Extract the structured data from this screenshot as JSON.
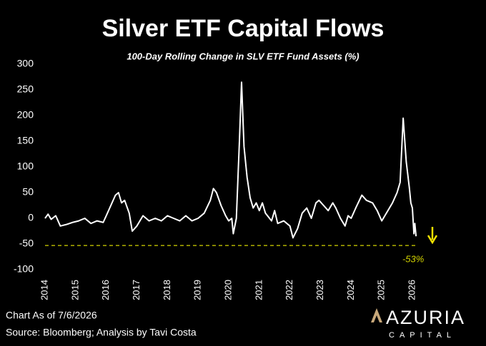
{
  "chart_data": {
    "type": "line",
    "title": "Silver ETF Capital Flows",
    "subtitle": "100-Day Rolling Change in SLV ETF Fund Assets (%)",
    "x": [
      2014.0,
      2014.1,
      2014.2,
      2014.35,
      2014.5,
      2014.7,
      2014.9,
      2015.1,
      2015.3,
      2015.5,
      2015.7,
      2015.9,
      2016.0,
      2016.15,
      2016.3,
      2016.4,
      2016.5,
      2016.6,
      2016.75,
      2016.85,
      2017.0,
      2017.2,
      2017.4,
      2017.6,
      2017.8,
      2018.0,
      2018.2,
      2018.4,
      2018.6,
      2018.8,
      2019.0,
      2019.2,
      2019.4,
      2019.5,
      2019.6,
      2019.75,
      2019.9,
      2020.0,
      2020.1,
      2020.15,
      2020.25,
      2020.35,
      2020.42,
      2020.5,
      2020.6,
      2020.7,
      2020.8,
      2020.9,
      2021.0,
      2021.1,
      2021.2,
      2021.4,
      2021.5,
      2021.6,
      2021.8,
      2022.0,
      2022.1,
      2022.25,
      2022.4,
      2022.55,
      2022.7,
      2022.85,
      2022.95,
      2023.1,
      2023.25,
      2023.4,
      2023.5,
      2023.65,
      2023.8,
      2023.9,
      2024.0,
      2024.15,
      2024.35,
      2024.5,
      2024.7,
      2024.85,
      2025.0,
      2025.2,
      2025.35,
      2025.5,
      2025.6,
      2025.7,
      2025.8,
      2025.9,
      2025.95,
      2026.0,
      2026.05,
      2026.08,
      2026.12
    ],
    "series": [
      {
        "name": "SLV 100-day change",
        "color": "#ffffff",
        "values": [
          0,
          8,
          -2,
          5,
          -15,
          -12,
          -8,
          -5,
          0,
          -10,
          -5,
          -8,
          5,
          25,
          45,
          50,
          30,
          35,
          10,
          -25,
          -15,
          5,
          -5,
          0,
          -5,
          5,
          0,
          -5,
          5,
          -5,
          0,
          10,
          35,
          58,
          50,
          25,
          5,
          -5,
          0,
          -30,
          0,
          150,
          265,
          140,
          80,
          40,
          20,
          30,
          15,
          30,
          10,
          -5,
          15,
          -10,
          -5,
          -15,
          -38,
          -20,
          10,
          20,
          0,
          30,
          35,
          25,
          15,
          30,
          20,
          0,
          -15,
          5,
          0,
          20,
          45,
          35,
          30,
          15,
          -5,
          15,
          30,
          50,
          70,
          195,
          110,
          60,
          30,
          20,
          -30,
          -10,
          -35
        ]
      }
    ],
    "xlim": [
      2014,
      2026.5
    ],
    "xticks": [
      2014,
      2015,
      2016,
      2017,
      2018,
      2019,
      2020,
      2021,
      2022,
      2023,
      2024,
      2025,
      2026
    ],
    "ylim": [
      -100,
      300
    ],
    "yticks": [
      -100,
      -50,
      0,
      50,
      100,
      150,
      200,
      250,
      300
    ],
    "reference_line": {
      "value": -53,
      "label": "-53%",
      "color": "#d4d400"
    },
    "notes": [
      "Chart As of 7/6/2026",
      "Source: Bloomberg; Analysis by Tavi Costa"
    ],
    "brand": {
      "name": "AZURIA",
      "tagline": "CAPITAL"
    }
  }
}
